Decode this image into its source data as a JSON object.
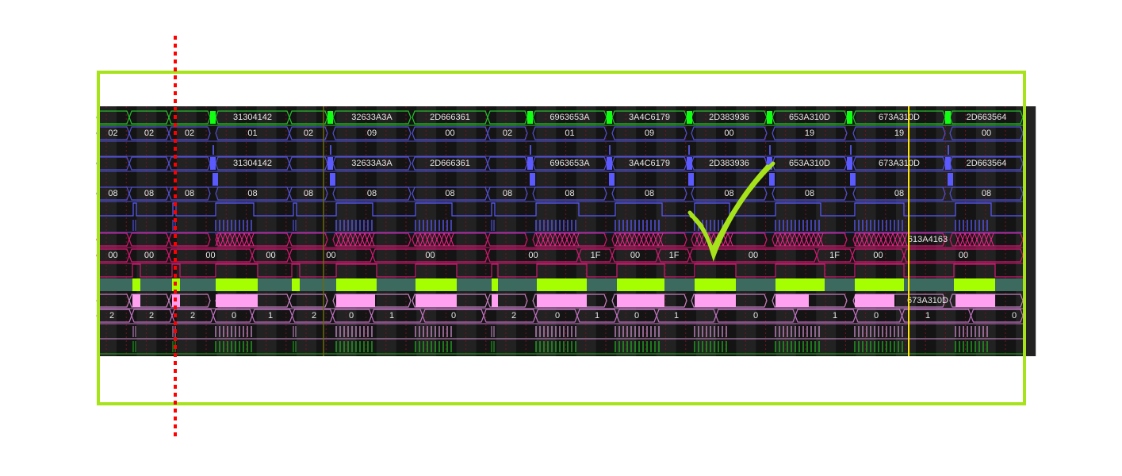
{
  "viewer": {
    "background": "#000000",
    "highlight_frame_color": "#a6e31a",
    "marker_line_color": "#ff0000",
    "cursor_color": "#ffe600",
    "annotation": "checkmark-icon"
  },
  "rows": [
    {
      "color": "#22c02a",
      "labels": [
        "31304142",
        "32633A3A",
        "2D666361",
        "6963653A",
        "3A4C6179",
        "2D383936",
        "653A310D",
        "673A310D",
        "2D663564"
      ]
    },
    {
      "color": "#5050d0",
      "labels": [
        "02",
        "02",
        "02",
        "01",
        "02",
        "09",
        "00",
        "02",
        "01",
        "09",
        "00",
        "19",
        "19",
        "00"
      ]
    },
    {
      "color": "#5050d0",
      "labels": []
    },
    {
      "color": "#5050d0",
      "labels": [
        "31304142",
        "32633A3A",
        "2D666361",
        "6963653A",
        "3A4C6179",
        "2D383936",
        "653A310D",
        "673A310D",
        "2D663564"
      ]
    },
    {
      "color": "#5050d0",
      "labels": []
    },
    {
      "color": "#5050d0",
      "labels": [
        "08",
        "08",
        "08",
        "08",
        "08",
        "08",
        "08",
        "08",
        "08",
        "08",
        "08",
        "08",
        "08",
        "08"
      ]
    },
    {
      "color": "#5050d0",
      "labels": []
    },
    {
      "color": "#5050d0",
      "labels": []
    },
    {
      "color": "#d01870",
      "labels": [
        "613A4163"
      ]
    },
    {
      "color": "#d01870",
      "labels": [
        "00",
        "00",
        "00",
        "00",
        "00",
        "00",
        "00",
        "1F",
        "00",
        "1F",
        "00",
        "1F",
        "00",
        "00"
      ]
    },
    {
      "color": "#d01870",
      "labels": []
    },
    {
      "color": "#a6ff00",
      "labels": []
    },
    {
      "color": "#ffa0f0",
      "labels": [
        "673A310D"
      ]
    },
    {
      "color": "#c070c0",
      "labels": [
        "2",
        "2",
        "2",
        "0",
        "1",
        "2",
        "0",
        "1",
        "0",
        "2",
        "0",
        "1",
        "0",
        "1",
        "0",
        "1",
        "0",
        "1",
        "0"
      ]
    },
    {
      "color": "#c070c0",
      "labels": []
    },
    {
      "color": "#20a020",
      "labels": []
    }
  ]
}
